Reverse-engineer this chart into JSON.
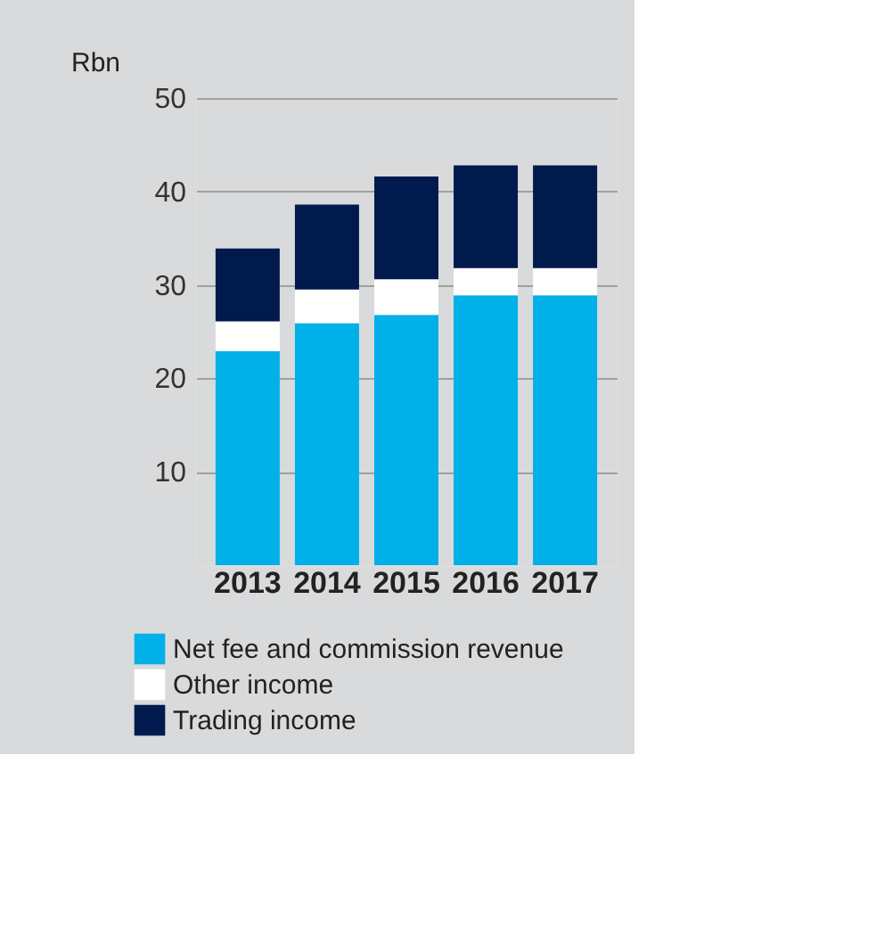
{
  "chart_data": {
    "type": "bar",
    "stacked": true,
    "ylabel": "Rbn",
    "categories": [
      "2013",
      "2014",
      "2015",
      "2016",
      "2017"
    ],
    "series": [
      {
        "name": "Net fee and commission revenue",
        "color": "#00b0e8",
        "values": [
          22.9,
          25.9,
          26.8,
          28.9,
          28.9
        ]
      },
      {
        "name": "Other income",
        "color": "#ffffff",
        "values": [
          3.2,
          3.6,
          3.8,
          2.9,
          2.9
        ]
      },
      {
        "name": "Trading income",
        "color": "#001a4d",
        "values": [
          7.8,
          9.1,
          11.0,
          11.0,
          11.0
        ]
      }
    ],
    "ylim": [
      0,
      50
    ],
    "yticks": [
      10,
      20,
      30,
      40,
      50
    ],
    "grid": "y",
    "legend": "bottom"
  }
}
